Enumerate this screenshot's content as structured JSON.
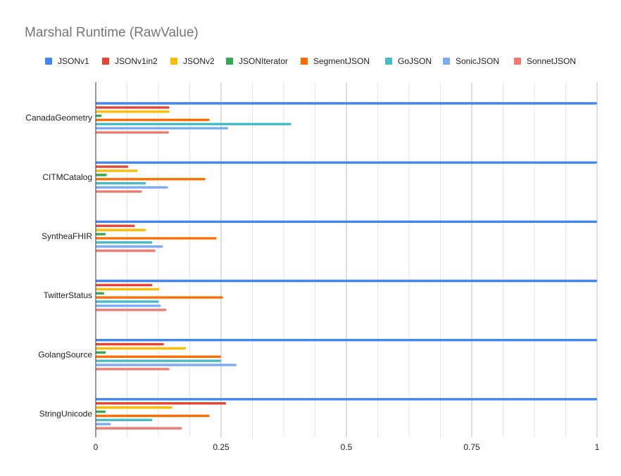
{
  "chart_data": {
    "type": "bar",
    "orientation": "horizontal",
    "title": "Marshal Runtime (RawValue)",
    "xlabel": "",
    "ylabel": "",
    "xlim": [
      0,
      1
    ],
    "x_ticks": [
      "0",
      "0.25",
      "0.5",
      "0.75",
      "1"
    ],
    "grid": true,
    "legend_position": "top",
    "categories": [
      "CanadaGeometry",
      "CITMCatalog",
      "SyntheaFHIR",
      "TwitterStatus",
      "GolangSource",
      "StringUnicode"
    ],
    "series": [
      {
        "name": "JSONv1",
        "color": "#4285f4",
        "values": [
          1.0,
          1.0,
          1.0,
          1.0,
          1.0,
          1.0
        ]
      },
      {
        "name": "JSONv1in2",
        "color": "#ea4335",
        "values": [
          0.147,
          0.065,
          0.078,
          0.113,
          0.136,
          0.26
        ]
      },
      {
        "name": "JSONv2",
        "color": "#fbbc04",
        "values": [
          0.147,
          0.084,
          0.1,
          0.127,
          0.18,
          0.153
        ]
      },
      {
        "name": "JSONIterator",
        "color": "#34a853",
        "values": [
          0.012,
          0.022,
          0.02,
          0.017,
          0.02,
          0.02
        ]
      },
      {
        "name": "SegmentJSON",
        "color": "#ff6d01",
        "values": [
          0.227,
          0.219,
          0.241,
          0.254,
          0.25,
          0.227
        ]
      },
      {
        "name": "GoJSON",
        "color": "#46bdc6",
        "values": [
          0.39,
          0.1,
          0.113,
          0.126,
          0.25,
          0.113
        ]
      },
      {
        "name": "SonicJSON",
        "color": "#7baaf7",
        "values": [
          0.264,
          0.144,
          0.134,
          0.13,
          0.281,
          0.03
        ]
      },
      {
        "name": "SonnetJSON",
        "color": "#f07b72",
        "values": [
          0.146,
          0.092,
          0.119,
          0.141,
          0.147,
          0.172
        ]
      }
    ]
  }
}
